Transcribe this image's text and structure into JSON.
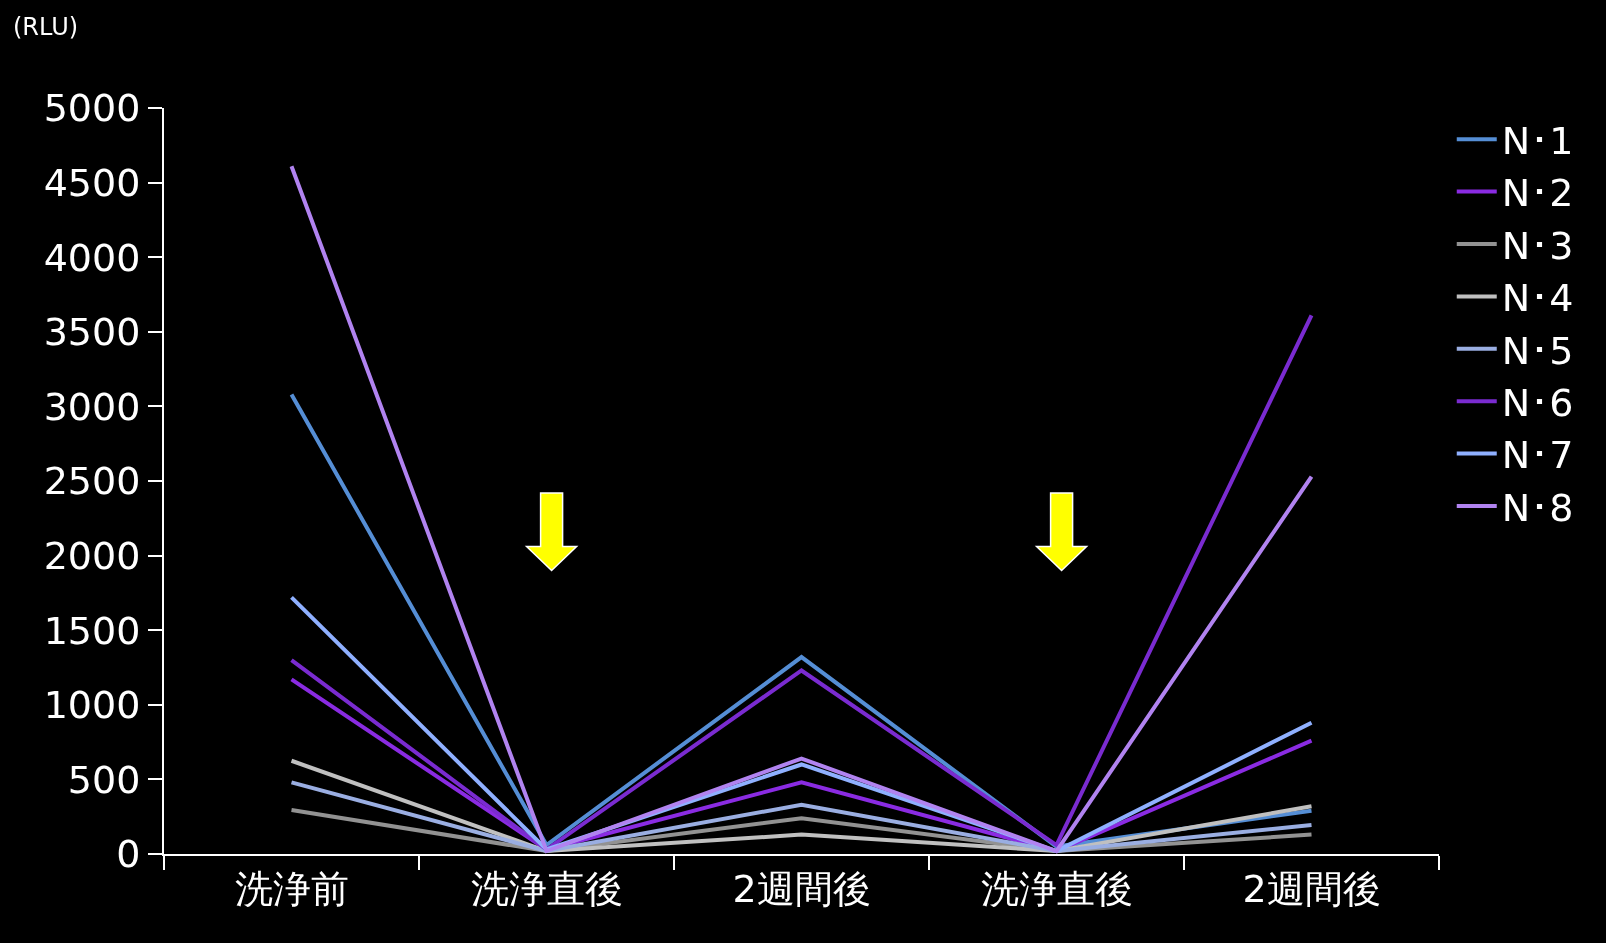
{
  "chart_data": {
    "type": "line",
    "ylabel": "(RLU)",
    "categories": [
      "洗浄前",
      "洗浄直後",
      "2週間後",
      "洗浄直後",
      "2週間後"
    ],
    "ylim": [
      0,
      5000
    ],
    "yticks": [
      0,
      500,
      1000,
      1500,
      2000,
      2500,
      3000,
      3500,
      4000,
      4500,
      5000
    ],
    "grid": false,
    "legend": "right",
    "marker": "none",
    "line_style": "solid",
    "series": [
      {
        "name": "N･1",
        "color": "#558ed5",
        "values": [
          3080,
          60,
          1320,
          50,
          290
        ]
      },
      {
        "name": "N･2",
        "color": "#8a2be2",
        "values": [
          1170,
          30,
          480,
          20,
          760
        ]
      },
      {
        "name": "N･3",
        "color": "#929292",
        "values": [
          295,
          20,
          240,
          20,
          130
        ]
      },
      {
        "name": "N･4",
        "color": "#c0c0c0",
        "values": [
          625,
          20,
          130,
          20,
          320
        ]
      },
      {
        "name": "N･5",
        "color": "#9aaee2",
        "values": [
          480,
          20,
          330,
          20,
          195
        ]
      },
      {
        "name": "N･6",
        "color": "#7a2bd0",
        "values": [
          1300,
          30,
          1230,
          60,
          3610
        ]
      },
      {
        "name": "N･7",
        "color": "#8fb0ff",
        "values": [
          1720,
          30,
          600,
          20,
          880
        ]
      },
      {
        "name": "N･8",
        "color": "#b183f0",
        "values": [
          4610,
          20,
          640,
          20,
          2530
        ]
      }
    ]
  }
}
